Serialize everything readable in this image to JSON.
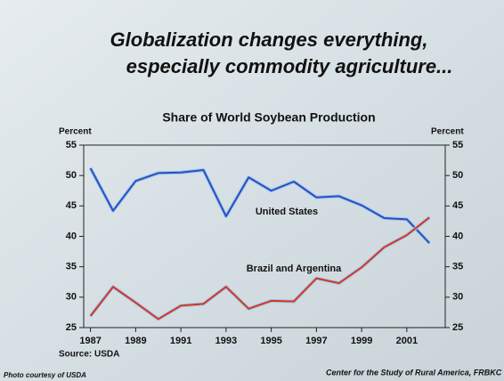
{
  "slide": {
    "title_lines": [
      "Globalization changes everything,",
      "especially commodity agriculture..."
    ],
    "photo_credit": "Photo courtesy of USDA",
    "footer": "Center for the Study of Rural America, FRBKC"
  },
  "chart_data": {
    "type": "line",
    "title": "Share of World Soybean Production",
    "y_label": "Percent",
    "y2_label": "Percent",
    "source": "Source: USDA",
    "x": [
      1987,
      1988,
      1989,
      1990,
      1991,
      1992,
      1993,
      1994,
      1995,
      1996,
      1997,
      1998,
      1999,
      2000,
      2001,
      2002
    ],
    "xlim": [
      1986.7,
      2002.7
    ],
    "xticks": [
      1987,
      1989,
      1991,
      1993,
      1995,
      1997,
      1999,
      2001
    ],
    "ylim": [
      25,
      55
    ],
    "yticks": [
      25,
      30,
      35,
      40,
      45,
      50,
      55
    ],
    "y2lim": [
      25,
      55
    ],
    "y2ticks": [
      25,
      30,
      35,
      40,
      45,
      50,
      55
    ],
    "series": [
      {
        "name": "United States",
        "color": "#2a4fbf",
        "values": [
          51.2,
          44.2,
          49.1,
          50.4,
          50.5,
          50.9,
          43.3,
          49.7,
          47.5,
          49.0,
          46.4,
          46.6,
          45.1,
          43.0,
          42.8,
          38.9
        ]
      },
      {
        "name": "Brazil and Argentina",
        "color": "#d8361c",
        "values": [
          26.9,
          31.7,
          29.1,
          26.4,
          28.6,
          28.9,
          31.7,
          28.1,
          29.4,
          29.3,
          33.1,
          32.3,
          34.9,
          38.2,
          40.2,
          43.1
        ]
      }
    ]
  }
}
